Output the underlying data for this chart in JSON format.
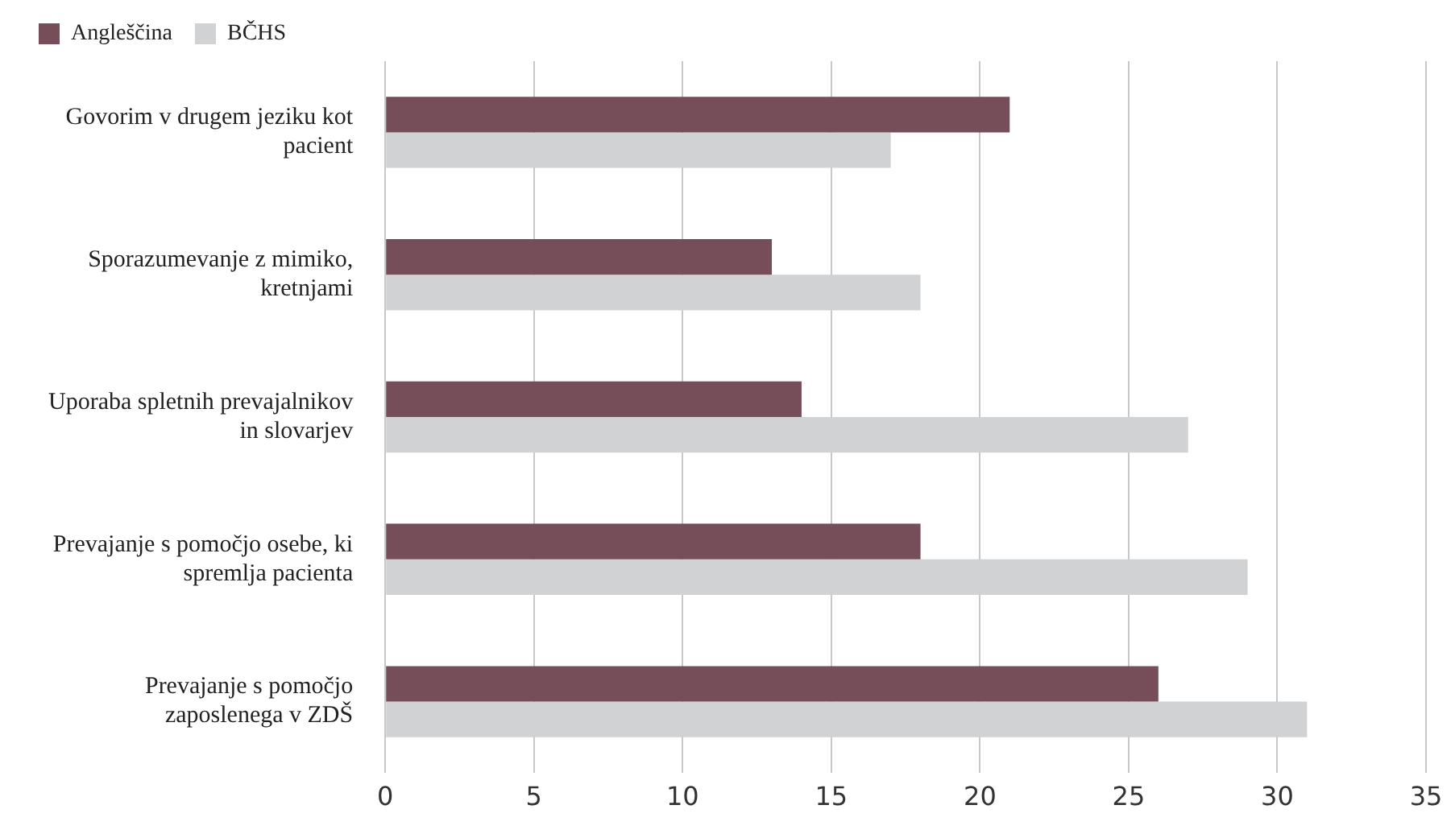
{
  "chart_data": {
    "type": "bar",
    "orientation": "horizontal",
    "categories": [
      "Govorim v drugem jeziku kot pacient",
      "Sporazumevanje z mimiko, kretnjami",
      "Uporaba spletnih prevajalnikov in slovarjev",
      "Prevajanje s pomočjo osebe, ki spremlja pacienta",
      "Prevajanje s pomočjo zaposlenega v ZDŠ"
    ],
    "series": [
      {
        "name": "Angleščina",
        "color": "#764e5a",
        "values": [
          21,
          13,
          14,
          18,
          26
        ]
      },
      {
        "name": "BČHS",
        "color": "#d1d2d4",
        "values": [
          17,
          18,
          27,
          29,
          31
        ]
      }
    ],
    "xlim": [
      0,
      35
    ],
    "xticks": [
      0,
      5,
      10,
      15,
      20,
      25,
      30,
      35
    ],
    "grid": "x",
    "legend": "top left"
  }
}
